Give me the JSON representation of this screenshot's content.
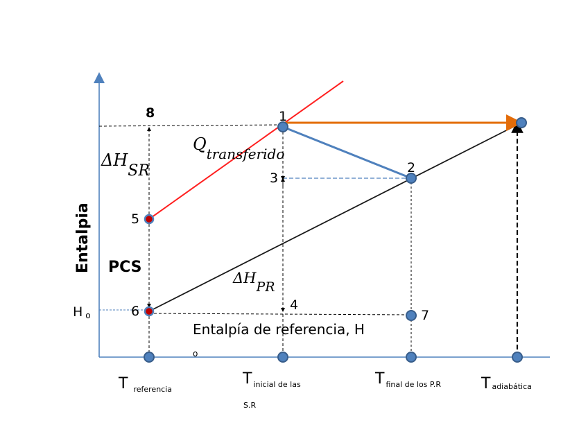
{
  "colors": {
    "axis": "#4f81bd",
    "point_fill": "#4f81bd",
    "point_stroke": "#385d8a",
    "special_point_fill": "#c00000",
    "red_line": "#ff2020",
    "orange_line": "#e36c09",
    "blue_line": "#4f81bd",
    "black": "#000000"
  },
  "y_axis_label": "Entalpia",
  "ho_label": "H",
  "ho_sub": "o",
  "pcs_label": "PCS",
  "delta_h_sr": {
    "main": "ΔH",
    "sub": "SR"
  },
  "delta_h_pr": {
    "main": "ΔH",
    "sub": "PR"
  },
  "q_transferido": {
    "main": "Q",
    "sub": "transferido"
  },
  "entalpia_referencia": {
    "main": "Entalpía de referencia, H",
    "sub": "o"
  },
  "points": {
    "p1": "1",
    "p2": "2",
    "p3": "3",
    "p4": "4",
    "p5": "5",
    "p6": "6",
    "p7": "7",
    "p8": "8"
  },
  "temperatures": [
    {
      "main": "T",
      "sub": "referencia",
      "sub2": ""
    },
    {
      "main": "T",
      "sub": "inicial de las",
      "sub2": "S.R"
    },
    {
      "main": "T",
      "sub": "final de los P.R",
      "sub2": ""
    },
    {
      "main": "T",
      "sub": "adiabática",
      "sub2": ""
    }
  ]
}
